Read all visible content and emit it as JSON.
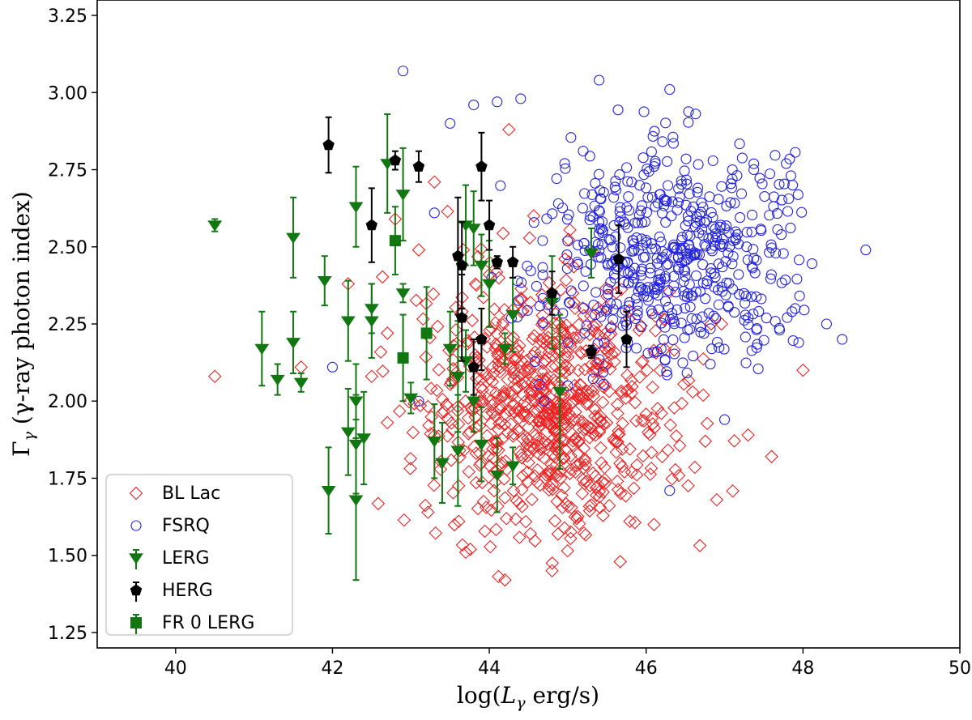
{
  "chart_data": {
    "type": "scatter",
    "xlabel": "log(Lγ erg/s)",
    "ylabel": "Γγ (γ-ray photon index)",
    "xlim": [
      39,
      50
    ],
    "ylim": [
      1.2,
      3.3
    ],
    "xticks": [
      40,
      42,
      44,
      46,
      48,
      50
    ],
    "yticks": [
      1.25,
      1.5,
      1.75,
      2.0,
      2.25,
      2.5,
      2.75,
      3.0,
      3.25
    ],
    "xtick_labels": [
      "40",
      "42",
      "44",
      "46",
      "48",
      "50"
    ],
    "ytick_labels": [
      "1.25",
      "1.50",
      "1.75",
      "2.00",
      "2.25",
      "2.50",
      "2.75",
      "3.00",
      "3.25"
    ],
    "grid": false,
    "legend_position": "lower-left",
    "legend": [
      "BL Lac",
      "FSRQ",
      "LERG",
      "HERG",
      "FR 0 LERG"
    ],
    "colors": {
      "bl_lac": "#ee2222",
      "fsrq": "#2222dd",
      "lerg": "#117711",
      "herg": "#000000",
      "fr0": "#117711"
    },
    "series": [
      {
        "name": "BL Lac",
        "marker": "diamond-open",
        "color": "#ee2222",
        "note": "dense cloud of ~1000 sources, approximated by a clustered distribution plus the isolated outliers",
        "cluster": {
          "n": 760,
          "x_mean": 44.75,
          "x_sd": 0.8,
          "y_mean": 1.98,
          "y_sd": 0.2,
          "x_range": [
            42.5,
            48
          ],
          "y_range": [
            1.42,
            2.62
          ]
        },
        "points": [
          {
            "x": 40.5,
            "y": 2.08
          },
          {
            "x": 41.6,
            "y": 2.11
          },
          {
            "x": 42.2,
            "y": 2.38
          },
          {
            "x": 42.5,
            "y": 2.08
          },
          {
            "x": 42.7,
            "y": 2.22
          },
          {
            "x": 42.7,
            "y": 1.93
          },
          {
            "x": 42.8,
            "y": 2.59
          },
          {
            "x": 43.1,
            "y": 2.49
          },
          {
            "x": 43.3,
            "y": 2.71
          },
          {
            "x": 44.25,
            "y": 2.88
          },
          {
            "x": 43.7,
            "y": 1.51
          },
          {
            "x": 44.2,
            "y": 1.42
          },
          {
            "x": 44.8,
            "y": 1.45
          },
          {
            "x": 46.1,
            "y": 1.6
          },
          {
            "x": 46.9,
            "y": 1.68
          },
          {
            "x": 47.6,
            "y": 1.82
          },
          {
            "x": 47.3,
            "y": 1.89
          },
          {
            "x": 48.0,
            "y": 2.1
          },
          {
            "x": 44.0,
            "y": 2.41
          },
          {
            "x": 45.0,
            "y": 2.2
          }
        ]
      },
      {
        "name": "FSRQ",
        "marker": "circle-open",
        "color": "#2222dd",
        "note": "dense cloud of ~700 sources, approximated by a clustered distribution plus the isolated outliers",
        "cluster": {
          "n": 560,
          "x_mean": 46.3,
          "x_sd": 0.85,
          "y_mean": 2.47,
          "y_sd": 0.18,
          "x_range": [
            44.0,
            48.2
          ],
          "y_range": [
            2.05,
            3.05
          ]
        },
        "points": [
          {
            "x": 42.9,
            "y": 3.07
          },
          {
            "x": 42.0,
            "y": 2.11
          },
          {
            "x": 43.1,
            "y": 2.0
          },
          {
            "x": 43.3,
            "y": 2.61
          },
          {
            "x": 43.5,
            "y": 2.9
          },
          {
            "x": 43.8,
            "y": 2.96
          },
          {
            "x": 44.1,
            "y": 2.97
          },
          {
            "x": 44.4,
            "y": 2.98
          },
          {
            "x": 45.4,
            "y": 3.04
          },
          {
            "x": 46.3,
            "y": 3.01
          },
          {
            "x": 48.8,
            "y": 2.49
          },
          {
            "x": 48.5,
            "y": 2.2
          },
          {
            "x": 48.3,
            "y": 2.25
          },
          {
            "x": 47.9,
            "y": 2.3
          },
          {
            "x": 47.0,
            "y": 1.94
          },
          {
            "x": 46.3,
            "y": 1.71
          },
          {
            "x": 45.0,
            "y": 2.05
          },
          {
            "x": 44.7,
            "y": 2.0
          }
        ]
      },
      {
        "name": "LERG",
        "marker": "triangle-down",
        "color": "#117711",
        "errorbars": true,
        "points": [
          {
            "x": 40.5,
            "y": 2.57,
            "err": 0.02
          },
          {
            "x": 41.1,
            "y": 2.17,
            "err": 0.12
          },
          {
            "x": 41.3,
            "y": 2.07,
            "err": 0.05
          },
          {
            "x": 41.5,
            "y": 2.53,
            "err": 0.13
          },
          {
            "x": 41.5,
            "y": 2.19,
            "err": 0.1
          },
          {
            "x": 41.6,
            "y": 2.06,
            "err": 0.03
          },
          {
            "x": 41.9,
            "y": 2.39,
            "err": 0.08
          },
          {
            "x": 41.95,
            "y": 1.71,
            "err": 0.14
          },
          {
            "x": 42.2,
            "y": 2.26,
            "err": 0.13
          },
          {
            "x": 42.2,
            "y": 1.9,
            "err": 0.14
          },
          {
            "x": 42.3,
            "y": 2.63,
            "err": 0.13
          },
          {
            "x": 42.3,
            "y": 2.0,
            "err": 0.12
          },
          {
            "x": 42.3,
            "y": 1.86,
            "err": 0.16
          },
          {
            "x": 42.3,
            "y": 1.68,
            "err": 0.26
          },
          {
            "x": 42.4,
            "y": 1.88,
            "err": 0.15
          },
          {
            "x": 42.5,
            "y": 2.3,
            "err": 0.08
          },
          {
            "x": 42.5,
            "y": 2.26,
            "err": 0.12
          },
          {
            "x": 42.7,
            "y": 2.77,
            "err": 0.16
          },
          {
            "x": 42.9,
            "y": 2.35,
            "err": 0.03
          },
          {
            "x": 42.9,
            "y": 2.67,
            "err": 0.15
          },
          {
            "x": 43.0,
            "y": 2.01,
            "err": 0.05
          },
          {
            "x": 43.3,
            "y": 1.87,
            "err": 0.12
          },
          {
            "x": 43.4,
            "y": 1.8,
            "err": 0.13
          },
          {
            "x": 43.5,
            "y": 2.17,
            "err": 0.12
          },
          {
            "x": 43.6,
            "y": 2.08,
            "err": 0.18
          },
          {
            "x": 43.6,
            "y": 1.84,
            "err": 0.18
          },
          {
            "x": 43.7,
            "y": 2.57,
            "err": 0.13
          },
          {
            "x": 43.7,
            "y": 2.13,
            "err": 0.1
          },
          {
            "x": 43.8,
            "y": 2.56,
            "err": 0.12
          },
          {
            "x": 43.8,
            "y": 2.0,
            "err": 0.1
          },
          {
            "x": 43.9,
            "y": 2.44,
            "err": 0.1
          },
          {
            "x": 43.9,
            "y": 1.86,
            "err": 0.12
          },
          {
            "x": 44.0,
            "y": 2.38,
            "err": 0.14
          },
          {
            "x": 44.1,
            "y": 1.76,
            "err": 0.12
          },
          {
            "x": 44.2,
            "y": 2.17,
            "err": 0.05
          },
          {
            "x": 44.3,
            "y": 2.28,
            "err": 0.12
          },
          {
            "x": 44.3,
            "y": 1.79,
            "err": 0.06
          },
          {
            "x": 44.8,
            "y": 2.32,
            "err": 0.15
          },
          {
            "x": 44.9,
            "y": 2.03,
            "err": 0.25
          },
          {
            "x": 45.3,
            "y": 2.48,
            "err": 0.08
          }
        ]
      },
      {
        "name": "HERG",
        "marker": "pentagon",
        "color": "#000000",
        "errorbars": true,
        "points": [
          {
            "x": 41.95,
            "y": 2.83,
            "err": 0.09
          },
          {
            "x": 42.5,
            "y": 2.57,
            "err": 0.12
          },
          {
            "x": 42.8,
            "y": 2.78,
            "err": 0.03
          },
          {
            "x": 43.1,
            "y": 2.76,
            "err": 0.05
          },
          {
            "x": 43.6,
            "y": 2.47,
            "err": 0.19
          },
          {
            "x": 43.65,
            "y": 2.44,
            "err": 0.14
          },
          {
            "x": 43.65,
            "y": 2.27,
            "err": 0.14
          },
          {
            "x": 43.8,
            "y": 2.11,
            "err": 0.09
          },
          {
            "x": 43.9,
            "y": 2.76,
            "err": 0.11
          },
          {
            "x": 43.9,
            "y": 2.2,
            "err": 0.1
          },
          {
            "x": 44.0,
            "y": 2.57,
            "err": 0.08
          },
          {
            "x": 44.1,
            "y": 2.45,
            "err": 0.02
          },
          {
            "x": 44.3,
            "y": 2.45,
            "err": 0.05
          },
          {
            "x": 44.8,
            "y": 2.35,
            "err": 0.07
          },
          {
            "x": 45.3,
            "y": 2.16,
            "err": 0.02
          },
          {
            "x": 45.65,
            "y": 2.46,
            "err": 0.11
          },
          {
            "x": 45.75,
            "y": 2.2,
            "err": 0.09
          }
        ]
      },
      {
        "name": "FR 0 LERG",
        "marker": "square",
        "color": "#117711",
        "errorbars": true,
        "points": [
          {
            "x": 42.8,
            "y": 2.52,
            "err": 0.11
          },
          {
            "x": 42.9,
            "y": 2.14,
            "err": 0.14
          },
          {
            "x": 43.2,
            "y": 2.22,
            "err": 0.15
          }
        ]
      }
    ]
  }
}
